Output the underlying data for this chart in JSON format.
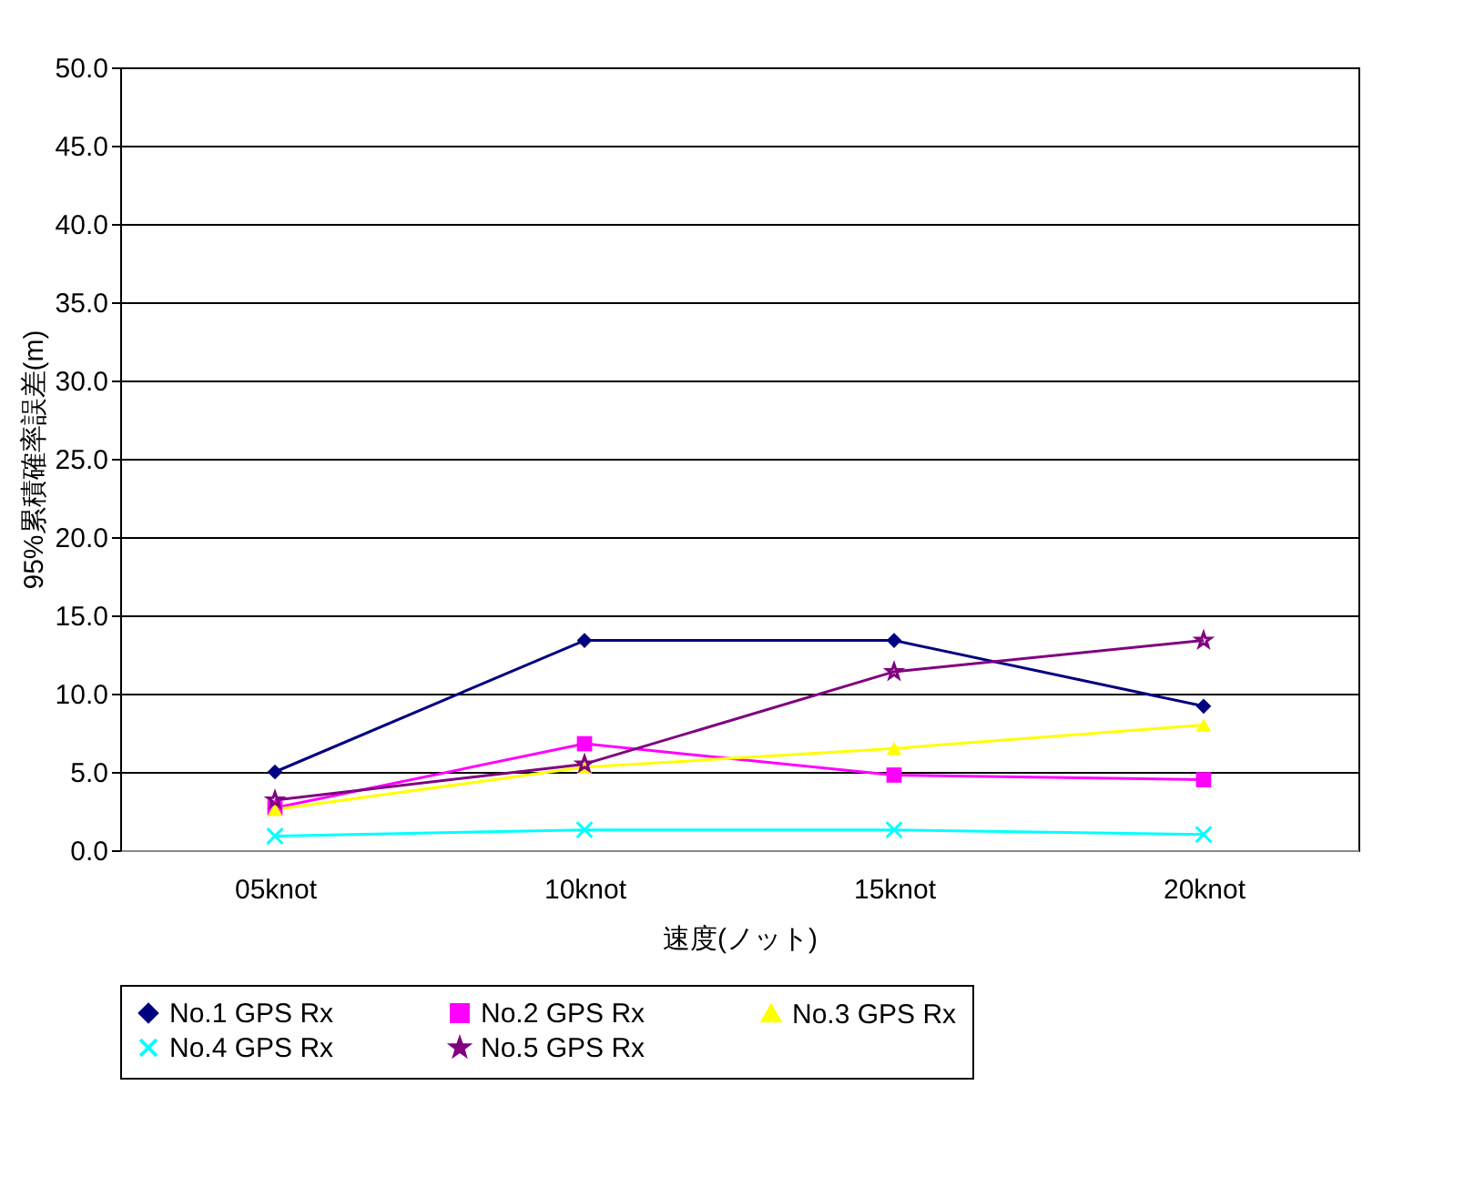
{
  "chart_data": {
    "type": "line",
    "xlabel": "速度(ノット)",
    "ylabel": "95%累積確率誤差(m)",
    "categories": [
      "05knot",
      "10knot",
      "15knot",
      "20knot"
    ],
    "series": [
      {
        "name": "No.1 GPS Rx",
        "color": "#000080",
        "marker": "diamond",
        "values": [
          5.0,
          13.4,
          13.4,
          9.2
        ]
      },
      {
        "name": "No.2 GPS Rx",
        "color": "#ff00ff",
        "marker": "square",
        "values": [
          2.7,
          6.8,
          4.8,
          4.5
        ]
      },
      {
        "name": "No.3 GPS Rx",
        "color": "#ffff00",
        "marker": "triangle",
        "values": [
          2.6,
          5.3,
          6.5,
          8.0
        ]
      },
      {
        "name": "No.4 GPS Rx",
        "color": "#00ffff",
        "marker": "cross",
        "values": [
          0.9,
          1.3,
          1.3,
          1.0
        ]
      },
      {
        "name": "No.5 GPS Rx",
        "color": "#800080",
        "marker": "star",
        "values": [
          3.2,
          5.5,
          11.4,
          13.4
        ]
      }
    ],
    "ylim": [
      0,
      50
    ],
    "yticks": [
      {
        "value": 0,
        "label": "0.0"
      },
      {
        "value": 5,
        "label": "5.0"
      },
      {
        "value": 10,
        "label": "10.0"
      },
      {
        "value": 15,
        "label": "15.0"
      },
      {
        "value": 20,
        "label": "20.0"
      },
      {
        "value": 25,
        "label": "25.0"
      },
      {
        "value": 30,
        "label": "30.0"
      },
      {
        "value": 35,
        "label": "35.0"
      },
      {
        "value": 40,
        "label": "40.0"
      },
      {
        "value": 45,
        "label": "45.0"
      },
      {
        "value": 50,
        "label": "50.0"
      }
    ],
    "grid": "y",
    "legend": "bottom",
    "line_style": "solid"
  }
}
